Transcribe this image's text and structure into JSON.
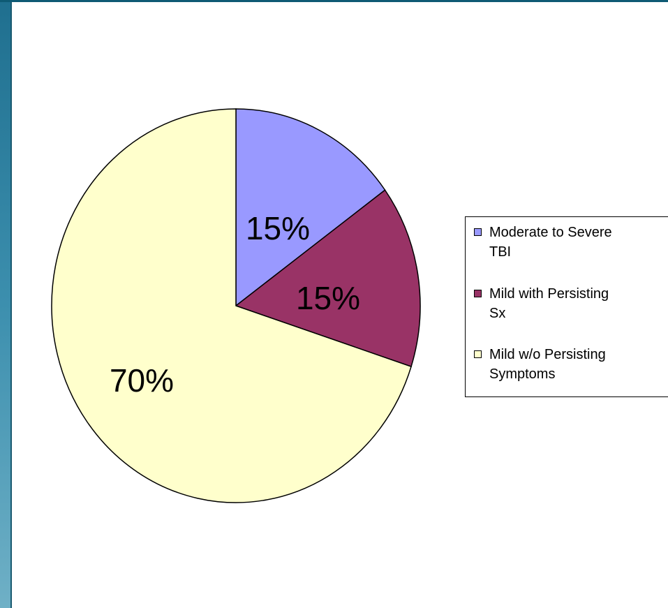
{
  "chart_data": {
    "type": "pie",
    "title": "",
    "slices": [
      {
        "label": "Moderate to Severe TBI",
        "value": 15,
        "display": "15%",
        "color": "#9999ff"
      },
      {
        "label": "Mild with Persisting Sx",
        "value": 15,
        "display": "15%",
        "color": "#993366"
      },
      {
        "label": "Mild w/o Persisting Symptoms",
        "value": 70,
        "display": "70%",
        "color": "#ffffcc"
      }
    ],
    "legend": {
      "placement": "right",
      "entries": [
        {
          "line1": "Moderate to Severe",
          "line2": "TBI"
        },
        {
          "line1": "Mild with Persisting",
          "line2": "Sx"
        },
        {
          "line1": "Mild w/o Persisting",
          "line2": "Symptoms"
        }
      ]
    }
  }
}
